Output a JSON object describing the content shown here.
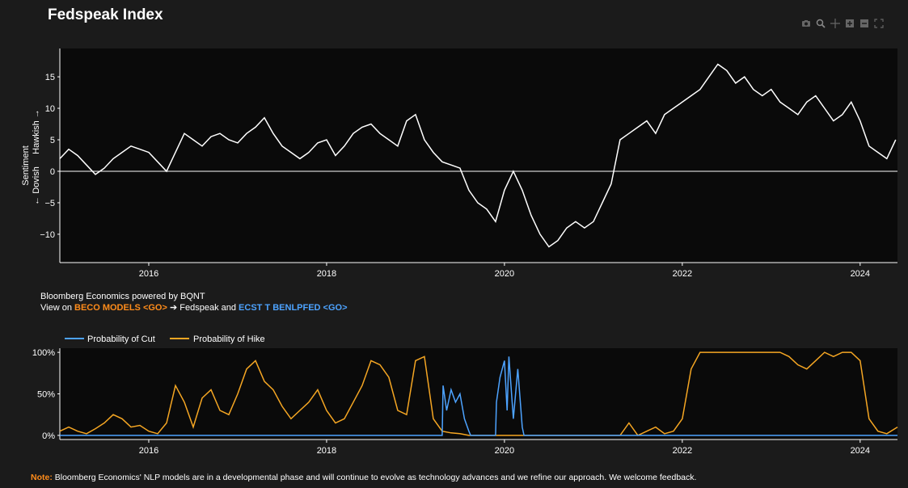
{
  "title": "Fedspeak Index",
  "toolbar": {
    "icons": [
      "camera-icon",
      "zoom-icon",
      "pan-icon",
      "zoom-in-icon",
      "zoom-out-icon",
      "autoscale-icon"
    ]
  },
  "credit": {
    "line1": "Bloomberg Economics powered by BQNT",
    "prefix": "View on ",
    "link1": "BECO MODELS <GO>",
    "arrow": "➔",
    "middle": " Fedspeak and ",
    "link2": "ECST T BENLPFED <GO>"
  },
  "note": {
    "label": "Note:",
    "text": " Bloomberg Economics' NLP models are in a developmental phase and will continue to evolve as technology advances and we refine our approach. We welcome feedback."
  },
  "colors": {
    "background": "#1b1b1b",
    "plot_bg": "#0a0a0a",
    "sentiment_line": "#ffffff",
    "cut": "#4da3ff",
    "hike": "#f5a623",
    "note_label": "#ff8c1a"
  },
  "chart_data": [
    {
      "type": "line",
      "ylabel_top": "Hawkish →",
      "ylabel_mid": "Sentiment",
      "ylabel_bottom": "← Dovish",
      "xlim": [
        2015.0,
        2024.42
      ],
      "ylim": [
        -14.5,
        19.5
      ],
      "xticks": [
        2016,
        2018,
        2020,
        2022,
        2024
      ],
      "xtick_labels": [
        "2016",
        "2018",
        "2020",
        "2022",
        "2024"
      ],
      "yticks": [
        -10,
        -5,
        0,
        5,
        10,
        15
      ],
      "ytick_labels": [
        "−10",
        "−5",
        "0",
        "5",
        "10",
        "15"
      ],
      "zero_line": true,
      "series": [
        {
          "x": [
            2015.0,
            2015.1,
            2015.2,
            2015.3,
            2015.4,
            2015.5,
            2015.6,
            2015.7,
            2015.8,
            2015.9,
            2016.0,
            2016.1,
            2016.2,
            2016.3,
            2016.4,
            2016.5,
            2016.6,
            2016.7,
            2016.8,
            2016.9,
            2017.0,
            2017.1,
            2017.2,
            2017.3,
            2017.4,
            2017.5,
            2017.6,
            2017.7,
            2017.8,
            2017.9,
            2018.0,
            2018.1,
            2018.2,
            2018.3,
            2018.4,
            2018.5,
            2018.6,
            2018.7,
            2018.8,
            2018.9,
            2019.0,
            2019.1,
            2019.2,
            2019.3,
            2019.4,
            2019.5,
            2019.6,
            2019.7,
            2019.8,
            2019.9,
            2020.0,
            2020.1,
            2020.2,
            2020.3,
            2020.4,
            2020.5,
            2020.6,
            2020.7,
            2020.8,
            2020.9,
            2021.0,
            2021.1,
            2021.2,
            2021.3,
            2021.4,
            2021.5,
            2021.6,
            2021.7,
            2021.8,
            2021.9,
            2022.0,
            2022.1,
            2022.2,
            2022.3,
            2022.4,
            2022.5,
            2022.6,
            2022.7,
            2022.8,
            2022.9,
            2023.0,
            2023.1,
            2023.2,
            2023.3,
            2023.4,
            2023.5,
            2023.6,
            2023.7,
            2023.8,
            2023.9,
            2024.0,
            2024.1,
            2024.2,
            2024.3,
            2024.4
          ],
          "y": [
            2,
            3.5,
            2.5,
            1,
            -0.5,
            0.5,
            2,
            3,
            4,
            3.5,
            3,
            1.5,
            0,
            3,
            6,
            5,
            4,
            5.5,
            6,
            5,
            4.5,
            6,
            7,
            8.5,
            6,
            4,
            3,
            2,
            3,
            4.5,
            5,
            2.5,
            4,
            6,
            7,
            7.5,
            6,
            5,
            4,
            8,
            9,
            5,
            3,
            1.5,
            1,
            0.5,
            -3,
            -5,
            -6,
            -8,
            -3,
            0,
            -3,
            -7,
            -10,
            -12,
            -11,
            -9,
            -8,
            -9,
            -8,
            -5,
            -2,
            5,
            6,
            7,
            8,
            6,
            9,
            10,
            11,
            12,
            13,
            15,
            17,
            16,
            14,
            15,
            13,
            12,
            13,
            11,
            10,
            9,
            11,
            12,
            10,
            8,
            9,
            11,
            8,
            4,
            3,
            2,
            5
          ]
        }
      ]
    },
    {
      "type": "line",
      "xlim": [
        2015.0,
        2024.42
      ],
      "ylim": [
        -5,
        105
      ],
      "xticks": [
        2016,
        2018,
        2020,
        2022,
        2024
      ],
      "xtick_labels": [
        "2016",
        "2018",
        "2020",
        "2022",
        "2024"
      ],
      "yticks": [
        0,
        50,
        100
      ],
      "ytick_labels": [
        "0%",
        "50%",
        "100%"
      ],
      "legend_position": "top-left",
      "series": [
        {
          "name": "Probability of Cut",
          "color": "#4da3ff",
          "x": [
            2015.0,
            2019.3,
            2019.31,
            2019.35,
            2019.4,
            2019.45,
            2019.5,
            2019.55,
            2019.6,
            2019.62,
            2019.63,
            2019.9,
            2019.91,
            2019.95,
            2020.0,
            2020.03,
            2020.05,
            2020.1,
            2020.15,
            2020.2,
            2020.22,
            2020.23,
            2024.42
          ],
          "y": [
            0,
            0,
            60,
            30,
            55,
            40,
            50,
            20,
            5,
            0,
            0,
            0,
            40,
            70,
            90,
            30,
            95,
            20,
            80,
            10,
            0,
            0,
            0
          ]
        },
        {
          "name": "Probability of Hike",
          "color": "#f5a623",
          "x": [
            2015.0,
            2015.1,
            2015.2,
            2015.3,
            2015.4,
            2015.5,
            2015.6,
            2015.7,
            2015.8,
            2015.9,
            2016.0,
            2016.1,
            2016.2,
            2016.3,
            2016.4,
            2016.5,
            2016.6,
            2016.7,
            2016.8,
            2016.9,
            2017.0,
            2017.1,
            2017.2,
            2017.3,
            2017.4,
            2017.5,
            2017.6,
            2017.7,
            2017.8,
            2017.9,
            2018.0,
            2018.1,
            2018.2,
            2018.3,
            2018.4,
            2018.5,
            2018.6,
            2018.7,
            2018.8,
            2018.9,
            2019.0,
            2019.1,
            2019.2,
            2019.3,
            2019.4,
            2019.5,
            2019.6,
            2019.7,
            2019.8,
            2019.9,
            2020.0,
            2020.5,
            2021.0,
            2021.3,
            2021.4,
            2021.5,
            2021.6,
            2021.7,
            2021.8,
            2021.9,
            2022.0,
            2022.1,
            2022.2,
            2022.3,
            2022.5,
            2022.7,
            2022.9,
            2023.0,
            2023.1,
            2023.2,
            2023.3,
            2023.4,
            2023.5,
            2023.6,
            2023.7,
            2023.8,
            2023.9,
            2024.0,
            2024.1,
            2024.2,
            2024.3,
            2024.42
          ],
          "y": [
            5,
            10,
            5,
            2,
            8,
            15,
            25,
            20,
            10,
            12,
            5,
            2,
            15,
            60,
            40,
            10,
            45,
            55,
            30,
            25,
            50,
            80,
            90,
            65,
            55,
            35,
            20,
            30,
            40,
            55,
            30,
            15,
            20,
            40,
            60,
            90,
            85,
            70,
            30,
            25,
            90,
            95,
            20,
            5,
            3,
            2,
            0,
            0,
            0,
            0,
            0,
            0,
            0,
            0,
            15,
            0,
            5,
            10,
            2,
            5,
            20,
            80,
            100,
            100,
            100,
            100,
            100,
            100,
            100,
            95,
            85,
            80,
            90,
            100,
            95,
            100,
            100,
            90,
            20,
            5,
            2,
            10
          ]
        }
      ]
    }
  ]
}
